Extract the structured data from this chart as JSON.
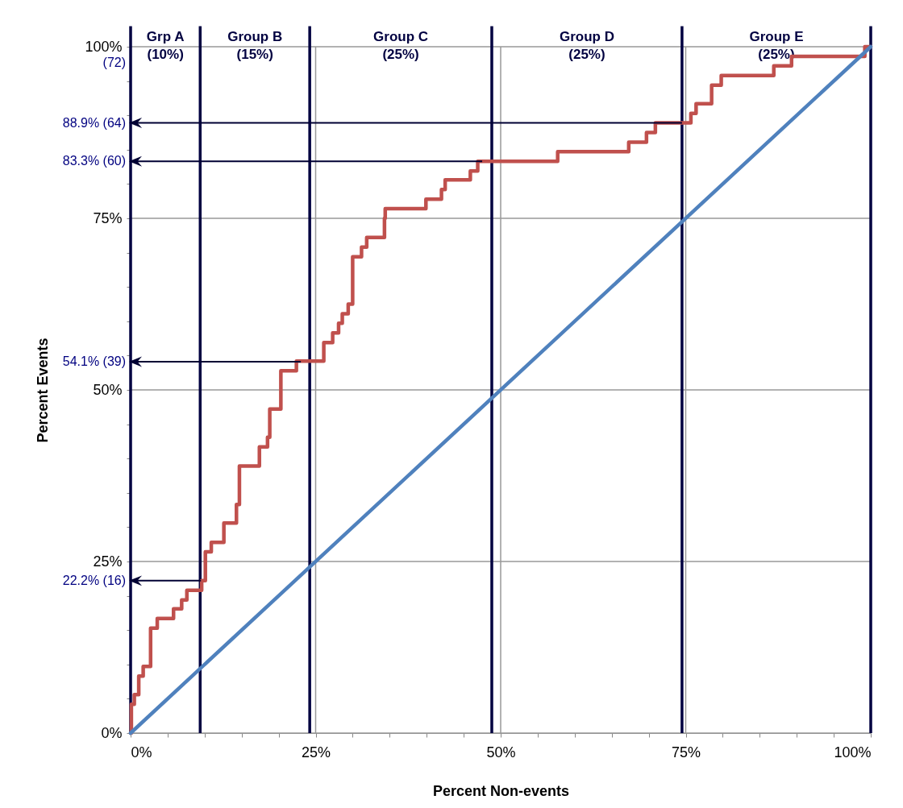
{
  "chart_data": {
    "type": "step",
    "xlabel": "Percent Non-events",
    "ylabel": "Percent Events",
    "xlim": [
      0,
      100
    ],
    "ylim": [
      0,
      100
    ],
    "xticks": [
      {
        "value": 0,
        "label": "0%"
      },
      {
        "value": 5,
        "label": null
      },
      {
        "value": 10,
        "label": null
      },
      {
        "value": 15,
        "label": null
      },
      {
        "value": 20,
        "label": null
      },
      {
        "value": 25,
        "label": "25%"
      },
      {
        "value": 30,
        "label": null
      },
      {
        "value": 35,
        "label": null
      },
      {
        "value": 40,
        "label": null
      },
      {
        "value": 45,
        "label": null
      },
      {
        "value": 50,
        "label": "50%"
      },
      {
        "value": 55,
        "label": null
      },
      {
        "value": 60,
        "label": null
      },
      {
        "value": 65,
        "label": null
      },
      {
        "value": 70,
        "label": null
      },
      {
        "value": 75,
        "label": "75%"
      },
      {
        "value": 80,
        "label": null
      },
      {
        "value": 85,
        "label": null
      },
      {
        "value": 90,
        "label": null
      },
      {
        "value": 95,
        "label": null
      },
      {
        "value": 100,
        "label": "100%"
      }
    ],
    "yticks": [
      {
        "value": 0,
        "label": "0%"
      },
      {
        "value": 5,
        "label": null
      },
      {
        "value": 10,
        "label": null
      },
      {
        "value": 15,
        "label": null
      },
      {
        "value": 20,
        "label": null
      },
      {
        "value": 25,
        "label": "25%"
      },
      {
        "value": 30,
        "label": null
      },
      {
        "value": 35,
        "label": null
      },
      {
        "value": 40,
        "label": null
      },
      {
        "value": 45,
        "label": null
      },
      {
        "value": 50,
        "label": "50%"
      },
      {
        "value": 55,
        "label": null
      },
      {
        "value": 60,
        "label": null
      },
      {
        "value": 65,
        "label": null
      },
      {
        "value": 70,
        "label": null
      },
      {
        "value": 75,
        "label": "75%"
      },
      {
        "value": 80,
        "label": null
      },
      {
        "value": 85,
        "label": null
      },
      {
        "value": 90,
        "label": null
      },
      {
        "value": 95,
        "label": null
      },
      {
        "value": 100,
        "label": "100%"
      }
    ],
    "grid": true,
    "series": [
      {
        "type": "step",
        "color": "#c0504d",
        "x": [
          0,
          0.1,
          0.5,
          1.1,
          1.7,
          2.7,
          3.6,
          5.8,
          6.9,
          7.6,
          9.6,
          10.1,
          10.9,
          12.6,
          14.3,
          14.7,
          17.4,
          18.5,
          18.8,
          20.3,
          22.4,
          26.1,
          27.3,
          28.1,
          28.6,
          29.4,
          30.0,
          31.2,
          31.9,
          34.3,
          34.4,
          39.9,
          42.0,
          42.5,
          45.9,
          46.9,
          57.7,
          67.3,
          69.7,
          70.9,
          75.7,
          76.4,
          78.5,
          79.8,
          86.9,
          89.3,
          99.2,
          100
        ],
        "values": [
          0,
          4.2,
          5.6,
          8.3,
          9.7,
          15.3,
          16.7,
          18.1,
          19.4,
          20.8,
          22.2,
          26.4,
          27.8,
          30.6,
          33.3,
          38.9,
          41.7,
          43.1,
          47.2,
          52.8,
          54.2,
          56.9,
          58.3,
          59.7,
          61.1,
          62.5,
          69.4,
          70.8,
          72.2,
          75.0,
          76.4,
          77.8,
          79.2,
          80.6,
          81.9,
          83.3,
          84.7,
          86.1,
          87.5,
          88.9,
          90.3,
          91.7,
          94.4,
          95.8,
          97.2,
          98.6,
          100,
          100
        ]
      },
      {
        "type": "line",
        "color": "#4f81bd",
        "x": [
          0,
          100
        ],
        "values": [
          0,
          100
        ]
      }
    ],
    "ref_lines": [
      {
        "axis": "x",
        "value": 0,
        "label": "Grp A\n(10%)",
        "color": "#000040"
      },
      {
        "axis": "x",
        "value": 9.4,
        "label": "Group B\n(15%)",
        "color": "#000040"
      },
      {
        "axis": "x",
        "value": 24.2,
        "label": "Group C\n(25%)",
        "color": "#000040"
      },
      {
        "axis": "x",
        "value": 48.8,
        "label": "Group D\n(25%)",
        "color": "#000040"
      },
      {
        "axis": "x",
        "value": 74.5,
        "label": "Group E\n(25%)",
        "color": "#000040"
      },
      {
        "axis": "x",
        "value": 100,
        "color": "#000040"
      }
    ],
    "annotations": [
      "(72)",
      {
        "text": "88.9% (64)",
        "x": 74.5,
        "y": 88.9
      },
      {
        "text": "83.3% (60)",
        "x": 47.5,
        "y": 83.3
      },
      {
        "text": "54.1% (39)",
        "x": 23.0,
        "y": 54.1
      },
      {
        "text": "22.2% (16)",
        "x": 9.5,
        "y": 22.2
      }
    ]
  }
}
